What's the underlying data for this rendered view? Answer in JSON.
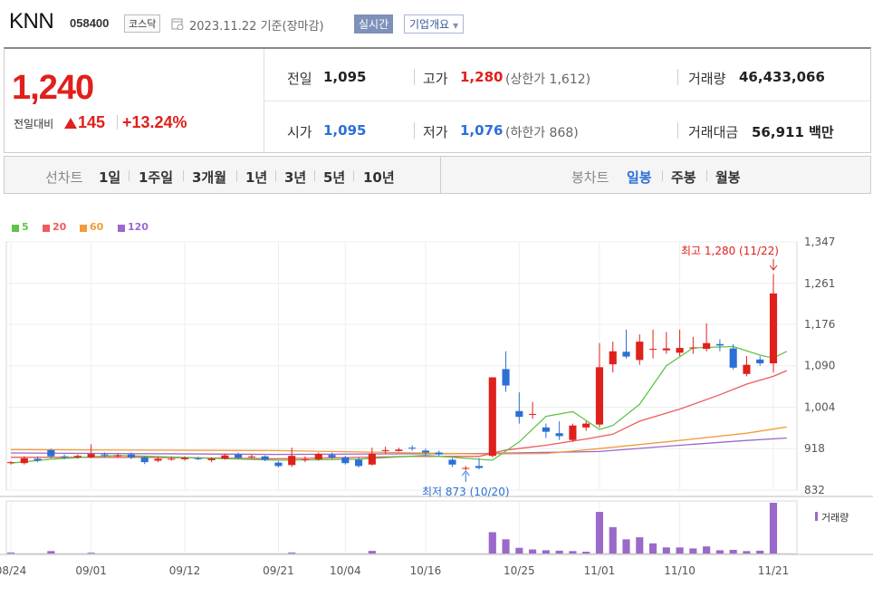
{
  "header": {
    "ticker": "KNN",
    "code": "058400",
    "market": "코스닥",
    "date": "2023.11.22",
    "basis": "기준(장마감)",
    "realtime_label": "실시간",
    "overview_label": "기업개요"
  },
  "quote": {
    "price": "1,240",
    "change_label": "전일대비",
    "change": "145",
    "change_pct": "+13.24%",
    "prev_close_label": "전일",
    "prev_close": "1,095",
    "open_label": "시가",
    "open": "1,095",
    "high_label": "고가",
    "high": "1,280",
    "upper_limit": "(상한가 1,612)",
    "low_label": "저가",
    "low": "1,076",
    "lower_limit": "(하한가 868)",
    "volume_label": "거래량",
    "volume": "46,433,066",
    "amount_label": "거래대금",
    "amount": "56,911",
    "amount_unit": "백만"
  },
  "tabs": {
    "line_label": "선차트",
    "line_items": [
      "1일",
      "1주일",
      "3개월",
      "1년",
      "3년",
      "5년",
      "10년"
    ],
    "candle_label": "봉차트",
    "candle_items": [
      "일봉",
      "주봉",
      "월봉"
    ],
    "candle_active": "일봉"
  },
  "colors": {
    "up": "#e0201b",
    "down": "#2c6fd6",
    "ma5": "#5fc44b",
    "ma20": "#ef5b5b",
    "ma60": "#f39b3a",
    "ma120": "#9a69c9",
    "volume": "#9a69c9"
  },
  "chart_data": {
    "type": "candlestick",
    "legend": [
      {
        "name": "5",
        "color": "#5fc44b"
      },
      {
        "name": "20",
        "color": "#ef5b5b"
      },
      {
        "name": "60",
        "color": "#f39b3a"
      },
      {
        "name": "120",
        "color": "#9a69c9"
      }
    ],
    "y_ticks": [
      "1,347",
      "1,261",
      "1,176",
      "1,090",
      "1,004",
      "918",
      "832"
    ],
    "ylim": [
      832,
      1347
    ],
    "x_ticks": [
      "08/24",
      "09/01",
      "09/12",
      "09/21",
      "10/04",
      "10/16",
      "10/25",
      "11/01",
      "11/10",
      "11/21"
    ],
    "annotation_high": "최고 1,280 (11/22)",
    "annotation_low": "최저 873 (10/20)",
    "volume_label": "거래량",
    "candles": [
      {
        "d": "08/24",
        "o": 888,
        "c": 890,
        "h": 892,
        "l": 885
      },
      {
        "d": "",
        "o": 888,
        "c": 898,
        "h": 902,
        "l": 885
      },
      {
        "d": "",
        "o": 897,
        "c": 893,
        "h": 902,
        "l": 890
      },
      {
        "d": "",
        "o": 915,
        "c": 902,
        "h": 918,
        "l": 898
      },
      {
        "d": "",
        "o": 902,
        "c": 900,
        "h": 906,
        "l": 896
      },
      {
        "d": "",
        "o": 900,
        "c": 903,
        "h": 906,
        "l": 897
      },
      {
        "d": "09/01",
        "o": 900,
        "c": 907,
        "h": 927,
        "l": 898
      },
      {
        "d": "",
        "o": 906,
        "c": 904,
        "h": 910,
        "l": 900
      },
      {
        "d": "",
        "o": 904,
        "c": 904,
        "h": 908,
        "l": 900
      },
      {
        "d": "",
        "o": 906,
        "c": 900,
        "h": 910,
        "l": 896
      },
      {
        "d": "",
        "o": 900,
        "c": 890,
        "h": 902,
        "l": 886
      },
      {
        "d": "",
        "o": 893,
        "c": 897,
        "h": 900,
        "l": 890
      },
      {
        "d": "",
        "o": 897,
        "c": 897,
        "h": 901,
        "l": 893
      },
      {
        "d": "09/12",
        "o": 896,
        "c": 899,
        "h": 902,
        "l": 893
      },
      {
        "d": "",
        "o": 898,
        "c": 897,
        "h": 901,
        "l": 894
      },
      {
        "d": "",
        "o": 894,
        "c": 897,
        "h": 900,
        "l": 890
      },
      {
        "d": "",
        "o": 897,
        "c": 904,
        "h": 908,
        "l": 895
      },
      {
        "d": "",
        "o": 906,
        "c": 899,
        "h": 910,
        "l": 896
      },
      {
        "d": "",
        "o": 902,
        "c": 902,
        "h": 906,
        "l": 898
      },
      {
        "d": "",
        "o": 902,
        "c": 895,
        "h": 904,
        "l": 892
      },
      {
        "d": "09/21",
        "o": 889,
        "c": 882,
        "h": 892,
        "l": 879
      },
      {
        "d": "",
        "o": 884,
        "c": 903,
        "h": 920,
        "l": 880
      },
      {
        "d": "",
        "o": 896,
        "c": 896,
        "h": 902,
        "l": 890
      },
      {
        "d": "",
        "o": 896,
        "c": 907,
        "h": 910,
        "l": 893
      },
      {
        "d": "",
        "o": 905,
        "c": 900,
        "h": 910,
        "l": 896
      },
      {
        "d": "10/04",
        "o": 900,
        "c": 888,
        "h": 903,
        "l": 885
      },
      {
        "d": "",
        "o": 895,
        "c": 882,
        "h": 900,
        "l": 879
      },
      {
        "d": "",
        "o": 885,
        "c": 908,
        "h": 920,
        "l": 883
      },
      {
        "d": "",
        "o": 913,
        "c": 915,
        "h": 922,
        "l": 908
      },
      {
        "d": "",
        "o": 913,
        "c": 916,
        "h": 920,
        "l": 912
      },
      {
        "d": "",
        "o": 920,
        "c": 918,
        "h": 925,
        "l": 914
      },
      {
        "d": "10/16",
        "o": 914,
        "c": 910,
        "h": 918,
        "l": 905
      },
      {
        "d": "",
        "o": 910,
        "c": 906,
        "h": 914,
        "l": 903
      },
      {
        "d": "",
        "o": 895,
        "c": 885,
        "h": 898,
        "l": 880
      },
      {
        "d": "",
        "o": 878,
        "c": 878,
        "h": 882,
        "l": 873
      },
      {
        "d": "",
        "o": 882,
        "c": 878,
        "h": 898,
        "l": 875
      },
      {
        "d": "",
        "o": 903,
        "c": 1066,
        "h": 1066,
        "l": 900
      },
      {
        "d": "",
        "o": 1083,
        "c": 1049,
        "h": 1120,
        "l": 1036
      },
      {
        "d": "10/25",
        "o": 996,
        "c": 984,
        "h": 1035,
        "l": 970
      },
      {
        "d": "",
        "o": 990,
        "c": 990,
        "h": 1015,
        "l": 980
      },
      {
        "d": "",
        "o": 962,
        "c": 953,
        "h": 970,
        "l": 940
      },
      {
        "d": "",
        "o": 950,
        "c": 944,
        "h": 975,
        "l": 936
      },
      {
        "d": "",
        "o": 936,
        "c": 966,
        "h": 970,
        "l": 932
      },
      {
        "d": "",
        "o": 962,
        "c": 970,
        "h": 975,
        "l": 955
      },
      {
        "d": "11/01",
        "o": 968,
        "c": 1087,
        "h": 1137,
        "l": 962
      },
      {
        "d": "",
        "o": 1093,
        "c": 1120,
        "h": 1140,
        "l": 1076
      },
      {
        "d": "",
        "o": 1119,
        "c": 1109,
        "h": 1165,
        "l": 1105
      },
      {
        "d": "",
        "o": 1102,
        "c": 1140,
        "h": 1155,
        "l": 1092
      },
      {
        "d": "",
        "o": 1125,
        "c": 1125,
        "h": 1165,
        "l": 1105
      },
      {
        "d": "",
        "o": 1122,
        "c": 1126,
        "h": 1160,
        "l": 1115
      },
      {
        "d": "11/10",
        "o": 1117,
        "c": 1127,
        "h": 1165,
        "l": 1110
      },
      {
        "d": "",
        "o": 1126,
        "c": 1128,
        "h": 1150,
        "l": 1115
      },
      {
        "d": "",
        "o": 1125,
        "c": 1137,
        "h": 1178,
        "l": 1120
      },
      {
        "d": "",
        "o": 1135,
        "c": 1132,
        "h": 1145,
        "l": 1120
      },
      {
        "d": "",
        "o": 1126,
        "c": 1086,
        "h": 1135,
        "l": 1082
      },
      {
        "d": "",
        "o": 1073,
        "c": 1092,
        "h": 1110,
        "l": 1068
      },
      {
        "d": "",
        "o": 1103,
        "c": 1095,
        "h": 1110,
        "l": 1090
      },
      {
        "d": "11/21",
        "o": 1095,
        "c": 1240,
        "h": 1280,
        "l": 1076
      }
    ],
    "ma5": [
      [
        0,
        888
      ],
      [
        3,
        896
      ],
      [
        8,
        904
      ],
      [
        14,
        899
      ],
      [
        20,
        894
      ],
      [
        26,
        896
      ],
      [
        31,
        904
      ],
      [
        34,
        898
      ],
      [
        36,
        894
      ],
      [
        38,
        932
      ],
      [
        40,
        985
      ],
      [
        42,
        995
      ],
      [
        44,
        958
      ],
      [
        45,
        966
      ],
      [
        47,
        1010
      ],
      [
        49,
        1090
      ],
      [
        51,
        1127
      ],
      [
        54,
        1130
      ],
      [
        56,
        1112
      ],
      [
        57,
        1106
      ],
      [
        58,
        1120
      ]
    ],
    "ma20": [
      [
        0,
        900
      ],
      [
        10,
        900
      ],
      [
        20,
        897
      ],
      [
        30,
        902
      ],
      [
        35,
        902
      ],
      [
        37,
        915
      ],
      [
        40,
        925
      ],
      [
        43,
        938
      ],
      [
        45,
        948
      ],
      [
        47,
        975
      ],
      [
        50,
        1000
      ],
      [
        53,
        1030
      ],
      [
        55,
        1052
      ],
      [
        57,
        1068
      ],
      [
        58,
        1080
      ]
    ],
    "ma60": [
      [
        0,
        916
      ],
      [
        20,
        914
      ],
      [
        35,
        907
      ],
      [
        40,
        908
      ],
      [
        44,
        918
      ],
      [
        50,
        935
      ],
      [
        55,
        950
      ],
      [
        58,
        963
      ]
    ],
    "ma120": [
      [
        0,
        909
      ],
      [
        20,
        906
      ],
      [
        35,
        908
      ],
      [
        44,
        912
      ],
      [
        50,
        925
      ],
      [
        55,
        935
      ],
      [
        58,
        940
      ]
    ],
    "volume": [
      0.5,
      0,
      0,
      1.2,
      0,
      0,
      0.4,
      0,
      0,
      0,
      0,
      0,
      0,
      0,
      0,
      0,
      0,
      0,
      0,
      0,
      0,
      0.5,
      0,
      0,
      0,
      0,
      0,
      1.3,
      0,
      0,
      0,
      0,
      0,
      0,
      0,
      0,
      10.5,
      7,
      2.8,
      2,
      1.6,
      1.4,
      1.2,
      0.9,
      20.5,
      13,
      7,
      8,
      5,
      3,
      3,
      2.5,
      3.5,
      1.6,
      1.8,
      1.2,
      1.4,
      25
    ]
  }
}
